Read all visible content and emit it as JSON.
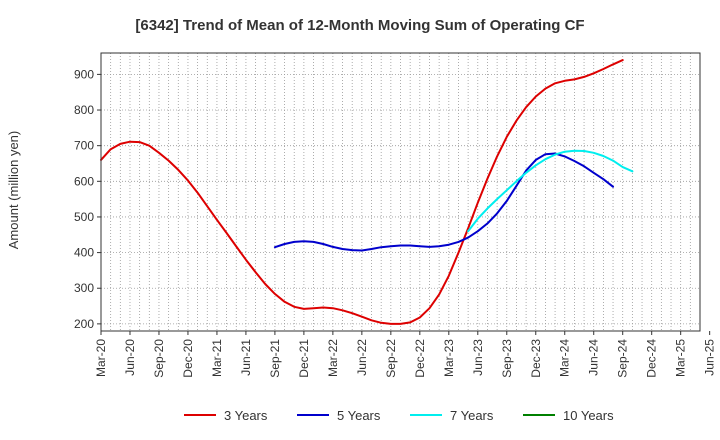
{
  "chart_data": {
    "type": "line",
    "title": "[6342]  Trend of Mean of 12-Month Moving Sum of Operating CF",
    "xlabel": "",
    "ylabel": "Amount (million yen)",
    "ylim": [
      180,
      960
    ],
    "yticks": [
      200,
      300,
      400,
      500,
      600,
      700,
      800,
      900
    ],
    "grid": true,
    "legend_position": "bottom",
    "x_tick_labels": [
      "Mar-20",
      "Jun-20",
      "Sep-20",
      "Dec-20",
      "Mar-21",
      "Jun-21",
      "Sep-21",
      "Dec-21",
      "Mar-22",
      "Jun-22",
      "Sep-22",
      "Dec-22",
      "Mar-23",
      "Jun-23",
      "Sep-23",
      "Dec-23",
      "Mar-24",
      "Jun-24",
      "Sep-24",
      "Dec-24",
      "Mar-25",
      "Jun-25"
    ],
    "series": [
      {
        "name": "3 Years",
        "color": "#dd0000",
        "points": [
          [
            0,
            660
          ],
          [
            1,
            690
          ],
          [
            2,
            705
          ],
          [
            3,
            711
          ],
          [
            4,
            710
          ],
          [
            5,
            700
          ],
          [
            6,
            680
          ],
          [
            7,
            658
          ],
          [
            8,
            632
          ],
          [
            9,
            602
          ],
          [
            10,
            568
          ],
          [
            11,
            530
          ],
          [
            12,
            492
          ],
          [
            13,
            455
          ],
          [
            14,
            417
          ],
          [
            15,
            380
          ],
          [
            16,
            345
          ],
          [
            17,
            312
          ],
          [
            18,
            284
          ],
          [
            19,
            262
          ],
          [
            20,
            248
          ],
          [
            21,
            242
          ],
          [
            22,
            244
          ],
          [
            23,
            246
          ],
          [
            24,
            244
          ],
          [
            25,
            238
          ],
          [
            26,
            230
          ],
          [
            27,
            220
          ],
          [
            28,
            210
          ],
          [
            29,
            203
          ],
          [
            30,
            200
          ],
          [
            31,
            200
          ],
          [
            32,
            204
          ],
          [
            33,
            218
          ],
          [
            34,
            244
          ],
          [
            35,
            282
          ],
          [
            36,
            335
          ],
          [
            37,
            400
          ],
          [
            38,
            468
          ],
          [
            39,
            540
          ],
          [
            40,
            608
          ],
          [
            41,
            670
          ],
          [
            42,
            725
          ],
          [
            43,
            770
          ],
          [
            44,
            808
          ],
          [
            45,
            838
          ],
          [
            46,
            860
          ],
          [
            47,
            875
          ],
          [
            48,
            882
          ],
          [
            49,
            886
          ],
          [
            50,
            893
          ],
          [
            51,
            903
          ],
          [
            52,
            915
          ],
          [
            53,
            928
          ],
          [
            54,
            940
          ]
        ]
      },
      {
        "name": "5 Years",
        "color": "#0000cc",
        "points": [
          [
            18,
            415
          ],
          [
            19,
            424
          ],
          [
            20,
            430
          ],
          [
            21,
            432
          ],
          [
            22,
            430
          ],
          [
            23,
            424
          ],
          [
            24,
            416
          ],
          [
            25,
            410
          ],
          [
            26,
            407
          ],
          [
            27,
            406
          ],
          [
            28,
            410
          ],
          [
            29,
            415
          ],
          [
            30,
            418
          ],
          [
            31,
            420
          ],
          [
            32,
            420
          ],
          [
            33,
            418
          ],
          [
            34,
            416
          ],
          [
            35,
            418
          ],
          [
            36,
            422
          ],
          [
            37,
            430
          ],
          [
            38,
            442
          ],
          [
            39,
            460
          ],
          [
            40,
            482
          ],
          [
            41,
            510
          ],
          [
            42,
            545
          ],
          [
            43,
            587
          ],
          [
            44,
            630
          ],
          [
            45,
            660
          ],
          [
            46,
            676
          ],
          [
            47,
            678
          ],
          [
            48,
            670
          ],
          [
            49,
            657
          ],
          [
            50,
            642
          ],
          [
            51,
            624
          ],
          [
            52,
            606
          ],
          [
            53,
            585
          ]
        ]
      },
      {
        "name": "7 Years",
        "color": "#00eeee",
        "points": [
          [
            38,
            460
          ],
          [
            39,
            495
          ],
          [
            40,
            524
          ],
          [
            41,
            550
          ],
          [
            42,
            575
          ],
          [
            43,
            600
          ],
          [
            44,
            624
          ],
          [
            45,
            645
          ],
          [
            46,
            662
          ],
          [
            47,
            675
          ],
          [
            48,
            683
          ],
          [
            49,
            686
          ],
          [
            50,
            685
          ],
          [
            51,
            680
          ],
          [
            52,
            671
          ],
          [
            53,
            658
          ],
          [
            54,
            640
          ],
          [
            55,
            628
          ]
        ]
      },
      {
        "name": "10 Years",
        "color": "#008000",
        "points": []
      }
    ]
  }
}
